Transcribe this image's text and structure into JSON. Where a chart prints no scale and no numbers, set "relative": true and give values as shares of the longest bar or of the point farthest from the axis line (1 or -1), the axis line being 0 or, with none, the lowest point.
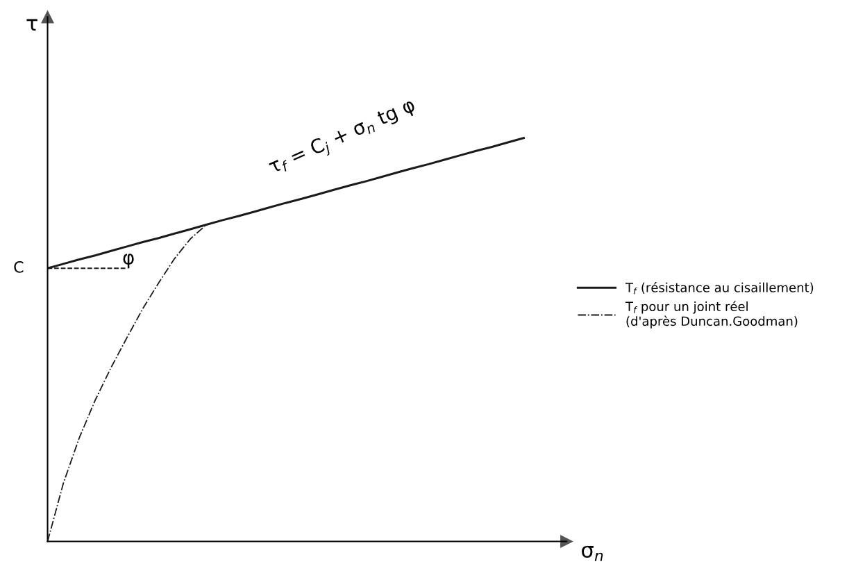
{
  "chart_data": {
    "type": "line",
    "relative": true,
    "xlabel": "σ$_{n}$",
    "legend": "right",
    "grid": false,
    "categories": [
      null,
      null,
      null,
      null,
      null,
      null,
      null,
      null,
      null,
      null,
      null,
      null,
      null,
      null,
      null,
      null,
      null,
      null,
      null,
      null,
      null,
      null,
      null,
      null,
      null,
      null,
      null,
      null,
      null,
      null,
      null
    ],
    "series": [
      {
        "name": "T$_{f}$ (résistance au cisaillement)",
        "color": "#1a1a1a",
        "line_style": "solid",
        "values": [
          0.677,
          0.688,
          0.699,
          0.709,
          0.72,
          0.731,
          0.742,
          0.752,
          0.763,
          0.774,
          0.785,
          0.796,
          0.806,
          0.817,
          0.828,
          0.839,
          0.849,
          0.86,
          0.871,
          0.882,
          0.892,
          0.903,
          0.914,
          0.925,
          0.935,
          0.946,
          0.957,
          0.968,
          0.978,
          0.989,
          1.0
        ]
      },
      {
        "name": "T$_{f}$ pour un joint réel\n(d'après Duncan.Goodman)",
        "color": "#1a1a1a",
        "line_style": "dashdot",
        "values": [
          0,
          0.145,
          0.257,
          0.35,
          0.431,
          0.505,
          0.577,
          0.641,
          0.701,
          0.75,
          0.785,
          null,
          null,
          null,
          null,
          null,
          null,
          null,
          null,
          null,
          null,
          null,
          null,
          null,
          null,
          null,
          null,
          null,
          null,
          null,
          null
        ]
      },
      {
        "color": "#1a1a1a",
        "line_style": "dashed",
        "values": [
          0.677,
          0.677,
          0.677,
          0.677,
          0.677,
          0.677,
          null,
          null,
          null,
          null,
          null,
          null,
          null,
          null,
          null,
          null,
          null,
          null,
          null,
          null,
          null,
          null,
          null,
          null,
          null,
          null,
          null,
          null,
          null,
          null,
          null
        ]
      }
    ],
    "annotations": [
      "τ$_{f}$ = C$_{j}$ + σ$_{n}$ tg φ",
      "φ",
      "C",
      "τ"
    ]
  }
}
